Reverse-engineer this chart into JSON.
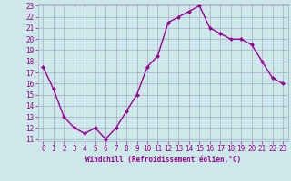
{
  "x": [
    0,
    1,
    2,
    3,
    4,
    5,
    6,
    7,
    8,
    9,
    10,
    11,
    12,
    13,
    14,
    15,
    16,
    17,
    18,
    19,
    20,
    21,
    22,
    23
  ],
  "y": [
    17.5,
    15.5,
    13.0,
    12.0,
    11.5,
    12.0,
    11.0,
    12.0,
    13.5,
    15.0,
    17.5,
    18.5,
    21.5,
    22.0,
    22.5,
    23.0,
    21.0,
    20.5,
    20.0,
    20.0,
    19.5,
    18.0,
    16.5,
    16.0
  ],
  "line_color": "#990099",
  "marker": "D",
  "marker_size": 2.0,
  "bg_color": "#cce8e8",
  "grid_color": "#aaaacc",
  "xlabel": "Windchill (Refroidissement éolien,°C)",
  "xlabel_color": "#990099",
  "tick_color": "#990099",
  "ylim": [
    11,
    23
  ],
  "xlim": [
    -0.5,
    23.5
  ],
  "yticks": [
    11,
    12,
    13,
    14,
    15,
    16,
    17,
    18,
    19,
    20,
    21,
    22,
    23
  ],
  "xticks": [
    0,
    1,
    2,
    3,
    4,
    5,
    6,
    7,
    8,
    9,
    10,
    11,
    12,
    13,
    14,
    15,
    16,
    17,
    18,
    19,
    20,
    21,
    22,
    23
  ],
  "linewidth": 1.0,
  "tick_fontsize": 5.5,
  "xlabel_fontsize": 5.5
}
